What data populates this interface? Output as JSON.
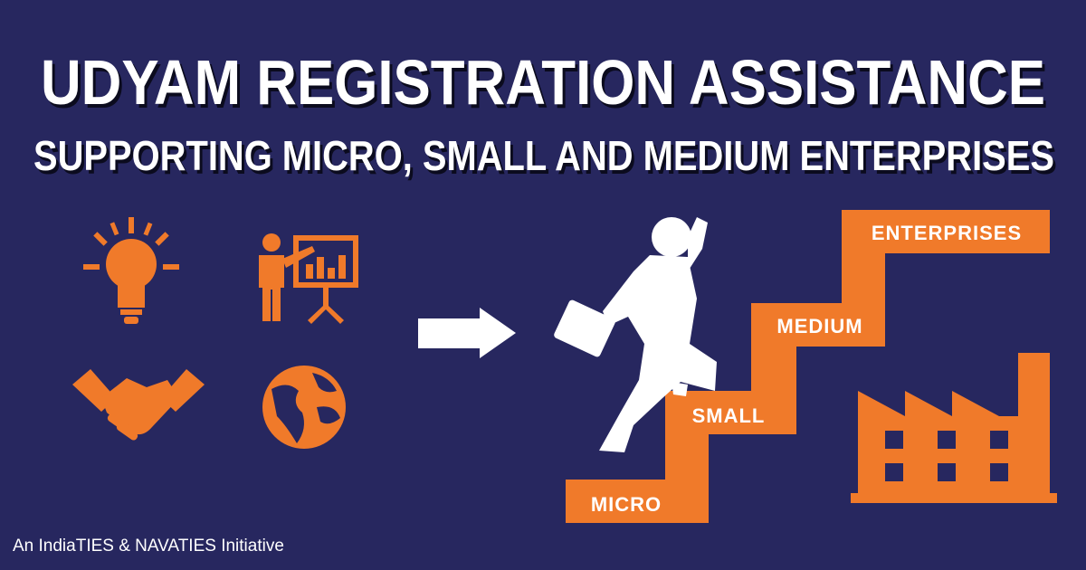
{
  "header": {
    "title": "UDYAM REGISTRATION ASSISTANCE",
    "subtitle": "SUPPORTING MICRO, SMALL AND MEDIUM ENTERPRISES"
  },
  "steps": [
    "MICRO",
    "SMALL",
    "MEDIUM",
    "ENTERPRISES"
  ],
  "footer": "An IndiaTIES & NAVATIES Initiative"
}
